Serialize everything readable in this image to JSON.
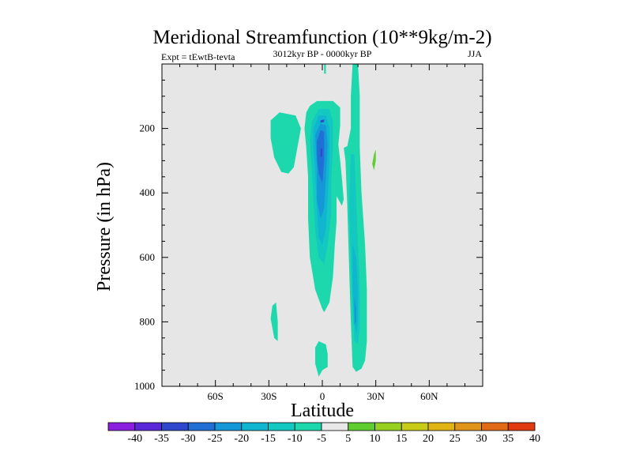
{
  "chart_data": {
    "type": "heatmap",
    "title": "Meridional Streamfunction (10**9kg/m-2)",
    "subtitle": "3012kyr BP - 0000kyr BP",
    "left_label": "Expt = tEwtB-tevta",
    "right_label": "JJA",
    "xlabel": "Latitude",
    "ylabel": "Pressure (in hPa)",
    "xlim": [
      -90,
      90
    ],
    "ylim": [
      0,
      1000
    ],
    "y_reversed": true,
    "x_ticks": [
      {
        "value": -60,
        "label": "60S"
      },
      {
        "value": -30,
        "label": "30S"
      },
      {
        "value": 0,
        "label": "0"
      },
      {
        "value": 30,
        "label": "30N"
      },
      {
        "value": 60,
        "label": "60N"
      }
    ],
    "y_ticks": [
      {
        "value": 200,
        "label": "200"
      },
      {
        "value": 400,
        "label": "400"
      },
      {
        "value": 600,
        "label": "600"
      },
      {
        "value": 800,
        "label": "800"
      },
      {
        "value": 1000,
        "label": "1000"
      }
    ],
    "background_color": "#e6e6e6",
    "colorbar": {
      "boundaries": [
        "-40",
        "-35",
        "-30",
        "-25",
        "-20",
        "-15",
        "-10",
        "-5",
        "5",
        "10",
        "15",
        "20",
        "25",
        "30",
        "35",
        "40"
      ],
      "colors": [
        "#8a1fe0",
        "#5a28d8",
        "#2f47cc",
        "#1f6fd4",
        "#1498d8",
        "#10b5cf",
        "#12c8c0",
        "#1ed8ad",
        "#e8e8e8",
        "#5fcc30",
        "#98d020",
        "#c8cc18",
        "#e0b414",
        "#e0941a",
        "#e06a16",
        "#e03a10"
      ]
    },
    "regions": [
      {
        "name": "sh-subtropical-cell",
        "level": -7.5,
        "points": [
          [
            -24,
            150
          ],
          [
            -15,
            160
          ],
          [
            -12,
            200
          ],
          [
            -14,
            260
          ],
          [
            -16,
            320
          ],
          [
            -19,
            340
          ],
          [
            -23,
            335
          ],
          [
            -27,
            290
          ],
          [
            -29,
            230
          ],
          [
            -29,
            175
          ]
        ]
      },
      {
        "name": "main-negative-cell",
        "level": -7.5,
        "points": [
          [
            -7,
            130
          ],
          [
            -3,
            115
          ],
          [
            6,
            115
          ],
          [
            10,
            135
          ],
          [
            10,
            190
          ],
          [
            9,
            250
          ],
          [
            10,
            300
          ],
          [
            11,
            355
          ],
          [
            12,
            420
          ],
          [
            11,
            440
          ],
          [
            9,
            420
          ],
          [
            8,
            410
          ],
          [
            8,
            490
          ],
          [
            7,
            560
          ],
          [
            6,
            660
          ],
          [
            4,
            740
          ],
          [
            1,
            770
          ],
          [
            0,
            760
          ],
          [
            -4,
            700
          ],
          [
            -7,
            600
          ],
          [
            -8,
            480
          ],
          [
            -8,
            350
          ],
          [
            -9,
            260
          ],
          [
            -10,
            200
          ],
          [
            -9,
            150
          ]
        ]
      },
      {
        "name": "main-core-level-2",
        "level": -12.5,
        "points": [
          [
            -6,
            180
          ],
          [
            -2,
            140
          ],
          [
            4,
            140
          ],
          [
            6,
            180
          ],
          [
            6,
            260
          ],
          [
            5,
            360
          ],
          [
            5,
            460
          ],
          [
            3,
            560
          ],
          [
            1,
            620
          ],
          [
            -2,
            600
          ],
          [
            -4,
            520
          ],
          [
            -5,
            420
          ],
          [
            -6,
            320
          ],
          [
            -7,
            240
          ]
        ]
      },
      {
        "name": "main-core-level-3",
        "level": -17.5,
        "points": [
          [
            -5,
            200
          ],
          [
            -2,
            160
          ],
          [
            2,
            160
          ],
          [
            4,
            200
          ],
          [
            4,
            300
          ],
          [
            3,
            420
          ],
          [
            2,
            510
          ],
          [
            0,
            560
          ],
          [
            -2,
            540
          ],
          [
            -3,
            450
          ],
          [
            -4,
            340
          ],
          [
            -5,
            260
          ]
        ]
      },
      {
        "name": "main-core-level-4",
        "level": -22.5,
        "points": [
          [
            -4,
            220
          ],
          [
            -1,
            185
          ],
          [
            2,
            190
          ],
          [
            3,
            250
          ],
          [
            2,
            350
          ],
          [
            1,
            450
          ],
          [
            -1,
            480
          ],
          [
            -3,
            420
          ],
          [
            -3,
            320
          ]
        ]
      },
      {
        "name": "main-core-level-5",
        "level": -27.5,
        "points": [
          [
            -3,
            240
          ],
          [
            -1,
            205
          ],
          [
            1,
            210
          ],
          [
            1,
            300
          ],
          [
            0,
            370
          ],
          [
            -2,
            340
          ],
          [
            -3,
            290
          ]
        ]
      },
      {
        "name": "main-core-level-6",
        "level": -32.5,
        "points": [
          [
            -1,
            265
          ],
          [
            0,
            260
          ],
          [
            0,
            285
          ],
          [
            -1,
            290
          ]
        ]
      },
      {
        "name": "upper-core-spot",
        "level": -32.5,
        "points": [
          [
            -1,
            175
          ],
          [
            1,
            172
          ],
          [
            1,
            180
          ],
          [
            -1,
            182
          ]
        ]
      },
      {
        "name": "nh-column",
        "level": -7.5,
        "points": [
          [
            17,
            0
          ],
          [
            20,
            0
          ],
          [
            21,
            100
          ],
          [
            21,
            260
          ],
          [
            22,
            400
          ],
          [
            24,
            560
          ],
          [
            25,
            700
          ],
          [
            25,
            860
          ],
          [
            24,
            920
          ],
          [
            22,
            945
          ],
          [
            19,
            955
          ],
          [
            17,
            940
          ],
          [
            16,
            800
          ],
          [
            15,
            620
          ],
          [
            14,
            440
          ],
          [
            13,
            300
          ],
          [
            12,
            260
          ],
          [
            14,
            255
          ],
          [
            16,
            200
          ],
          [
            16,
            100
          ]
        ]
      },
      {
        "name": "nh-column-level-2",
        "level": -12.5,
        "points": [
          [
            16,
            280
          ],
          [
            18,
            280
          ],
          [
            19,
            420
          ],
          [
            20,
            560
          ],
          [
            21,
            700
          ],
          [
            21,
            820
          ],
          [
            20,
            870
          ],
          [
            18,
            860
          ],
          [
            17,
            760
          ],
          [
            16,
            600
          ],
          [
            15,
            440
          ]
        ]
      },
      {
        "name": "nh-column-level-3",
        "level": -17.5,
        "points": [
          [
            17,
            560
          ],
          [
            19,
            600
          ],
          [
            20,
            700
          ],
          [
            20,
            800
          ],
          [
            19,
            840
          ],
          [
            18,
            800
          ],
          [
            17,
            700
          ]
        ]
      },
      {
        "name": "nh-column-level-4",
        "level": -22.5,
        "points": [
          [
            18,
            720
          ],
          [
            19,
            760
          ],
          [
            19,
            800
          ],
          [
            18,
            810
          ]
        ]
      },
      {
        "name": "top-sliver",
        "level": -7.5,
        "points": [
          [
            1,
            0
          ],
          [
            2,
            0
          ],
          [
            2,
            30
          ],
          [
            1,
            30
          ]
        ]
      },
      {
        "name": "sh-lower-blob",
        "level": -7.5,
        "points": [
          [
            -28,
            750
          ],
          [
            -26,
            740
          ],
          [
            -25,
            800
          ],
          [
            -25,
            860
          ],
          [
            -27,
            850
          ],
          [
            -29,
            790
          ]
        ]
      },
      {
        "name": "equatorial-surface-blob",
        "level": -7.5,
        "points": [
          [
            -4,
            880
          ],
          [
            -2,
            860
          ],
          [
            2,
            870
          ],
          [
            3,
            900
          ],
          [
            3,
            940
          ],
          [
            0,
            950
          ],
          [
            -2,
            970
          ],
          [
            -4,
            930
          ]
        ]
      },
      {
        "name": "nh-positive-spot",
        "level": 7.5,
        "points": [
          [
            29,
            280
          ],
          [
            30,
            265
          ],
          [
            30,
            300
          ],
          [
            29,
            330
          ],
          [
            28,
            310
          ]
        ]
      }
    ]
  }
}
